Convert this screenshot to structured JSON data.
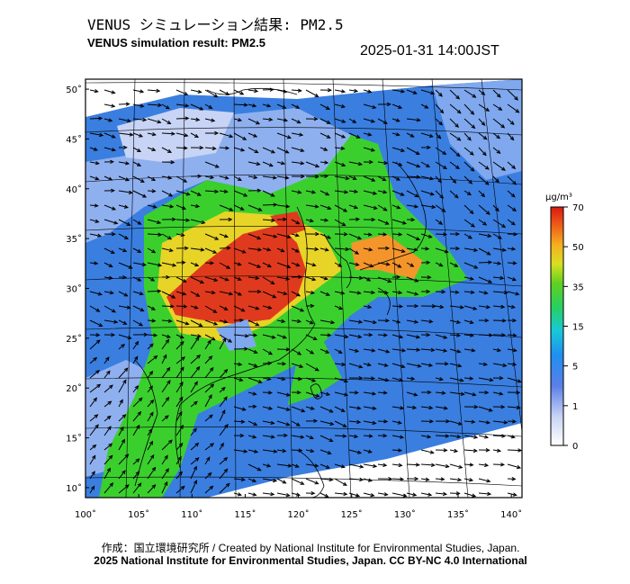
{
  "header": {
    "title_jp": "VENUS シミュレーション結果: PM2.5",
    "title_en": "VENUS simulation result: PM2.5",
    "timestamp": "2025-01-31 14:00JST"
  },
  "map": {
    "lat_labels": [
      "50˚",
      "45˚",
      "40˚",
      "35˚",
      "30˚",
      "25˚",
      "20˚",
      "15˚",
      "10˚"
    ],
    "lon_labels": [
      "100˚",
      "105˚",
      "110˚",
      "115˚",
      "120˚",
      "125˚",
      "130˚",
      "135˚",
      "140˚"
    ],
    "lat_values": [
      50,
      45,
      40,
      35,
      30,
      25,
      20,
      15,
      10
    ],
    "lon_values": [
      100,
      105,
      110,
      115,
      120,
      125,
      130,
      135,
      140
    ],
    "lon_range": [
      100,
      141
    ],
    "lat_range": [
      9,
      51
    ],
    "wind_direction": "predominantly westerly/northwesterly",
    "colors": {
      "ocean_blue": "#3a7ee0",
      "land_blue": "#7fa8ee",
      "green": "#3bcf2e",
      "yellow": "#e8d427",
      "orange": "#f4952b",
      "red": "#e03a1e",
      "lavender": "#c8d4f5"
    }
  },
  "colorbar": {
    "unit": "μg/m³",
    "tick_labels": [
      "70",
      "50",
      "35",
      "15",
      "5",
      "1",
      "0"
    ],
    "tick_values": [
      70,
      50,
      35,
      15,
      5,
      1,
      0
    ]
  },
  "footer": {
    "credit_jp_en": "作成：国立環境研究所 / Created by National Institute for Environmental Studies, Japan.",
    "copyright": "2025 National Institute for Environmental Studies, Japan. CC BY-NC 4.0 International"
  }
}
